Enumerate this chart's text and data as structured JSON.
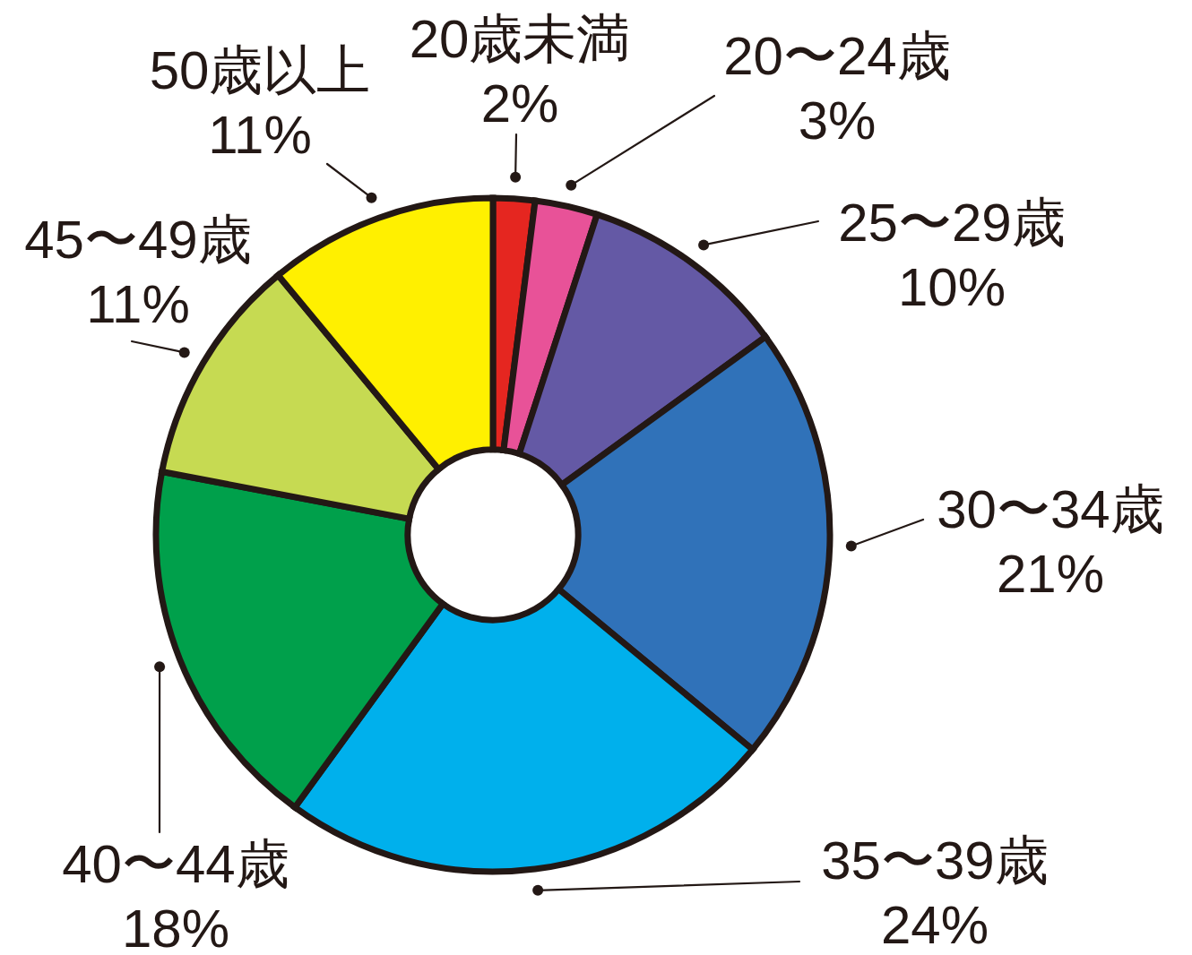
{
  "chart_data": {
    "type": "donut",
    "categories": [
      "20歳未満",
      "20〜24歳",
      "25〜29歳",
      "30〜34歳",
      "35〜39歳",
      "40〜44歳",
      "45〜49歳",
      "50歳以上"
    ],
    "values": [
      2,
      3,
      10,
      21,
      24,
      18,
      11,
      11
    ],
    "colors": [
      "#e52620",
      "#e85298",
      "#6459a5",
      "#3072b9",
      "#00b0ec",
      "#00a04b",
      "#c6da52",
      "#fff000"
    ],
    "value_labels": [
      "2%",
      "3%",
      "10%",
      "21%",
      "24%",
      "18%",
      "11%",
      "11%"
    ]
  }
}
